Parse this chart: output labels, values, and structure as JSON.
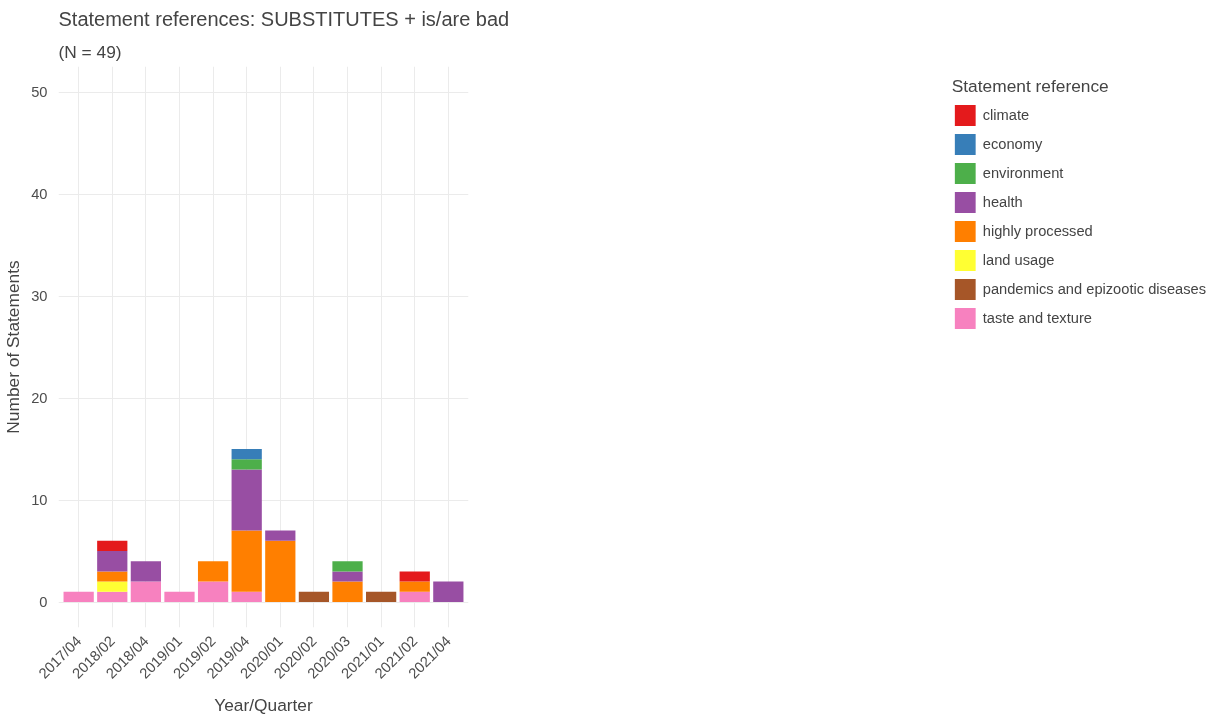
{
  "chart_data": {
    "type": "bar",
    "stacked": true,
    "title": "Statement references: SUBSTITUTES + is/are bad",
    "subtitle": "(N = 49)",
    "xlabel": "Year/Quarter",
    "ylabel": "Number of Statements",
    "legend_title": "Statement reference",
    "categories": [
      "2017/04",
      "2018/02",
      "2018/04",
      "2019/01",
      "2019/02",
      "2019/04",
      "2020/01",
      "2020/02",
      "2020/03",
      "2021/01",
      "2021/02",
      "2021/04"
    ],
    "series": [
      {
        "name": "taste and texture",
        "color": "#f781bf",
        "values": [
          1,
          1,
          2,
          1,
          2,
          1,
          null,
          null,
          null,
          null,
          1,
          null
        ]
      },
      {
        "name": "pandemics and epizootic diseases",
        "color": "#a65628",
        "values": [
          null,
          null,
          null,
          null,
          null,
          null,
          null,
          1,
          null,
          1,
          null,
          null
        ]
      },
      {
        "name": "land usage",
        "color": "#ffff33",
        "values": [
          null,
          1,
          null,
          null,
          null,
          null,
          null,
          null,
          null,
          null,
          null,
          null
        ]
      },
      {
        "name": "highly processed",
        "color": "#ff7f00",
        "values": [
          null,
          1,
          null,
          null,
          2,
          6,
          6,
          null,
          2,
          null,
          1,
          null
        ]
      },
      {
        "name": "health",
        "color": "#984ea3",
        "values": [
          null,
          2,
          2,
          null,
          null,
          6,
          1,
          null,
          1,
          null,
          null,
          2
        ]
      },
      {
        "name": "environment",
        "color": "#4daf4a",
        "values": [
          null,
          null,
          null,
          null,
          null,
          1,
          null,
          null,
          1,
          null,
          null,
          null
        ]
      },
      {
        "name": "economy",
        "color": "#377eb8",
        "values": [
          null,
          null,
          null,
          null,
          null,
          1,
          null,
          null,
          null,
          null,
          null,
          null
        ]
      },
      {
        "name": "climate",
        "color": "#e41a1c",
        "values": [
          null,
          1,
          null,
          null,
          null,
          null,
          null,
          null,
          null,
          null,
          1,
          null
        ]
      }
    ],
    "ylim": [
      -2.5,
      52.5
    ],
    "yticks": [
      0,
      10,
      20,
      30,
      40,
      50
    ],
    "grid": true,
    "legend": "right"
  }
}
